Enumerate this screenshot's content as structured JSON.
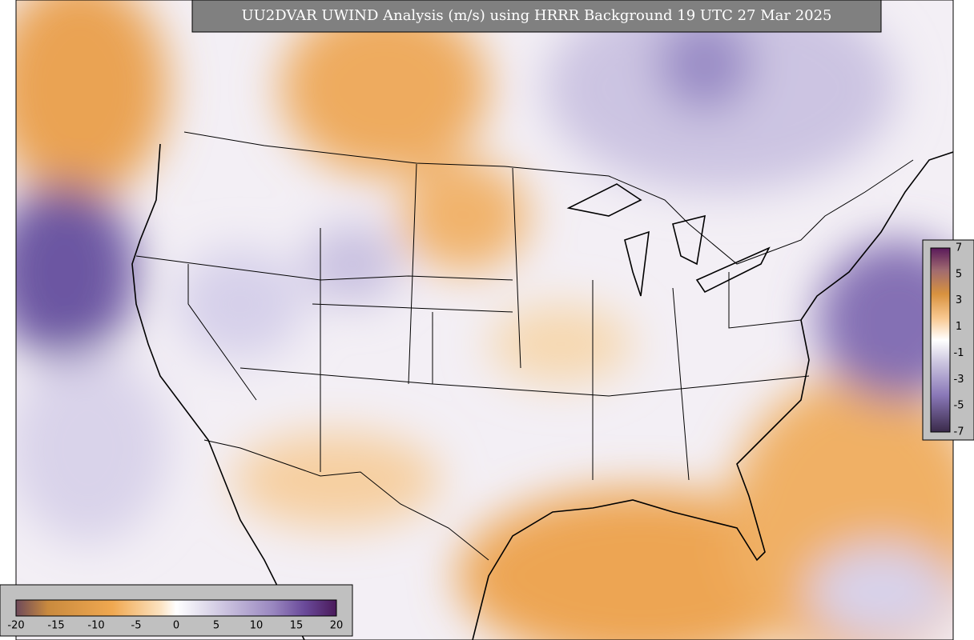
{
  "header": {
    "title": "UU2DVAR UWIND Analysis (m/s) using HRRR Background 19 UTC 27 Mar 2025"
  },
  "colorbar_horizontal": {
    "ticks": [
      -20,
      -15,
      -10,
      -5,
      0,
      5,
      10,
      15,
      20
    ]
  },
  "colorbar_vertical": {
    "ticks": [
      7,
      5,
      3,
      1,
      -1,
      -3,
      -5,
      -7
    ]
  }
}
